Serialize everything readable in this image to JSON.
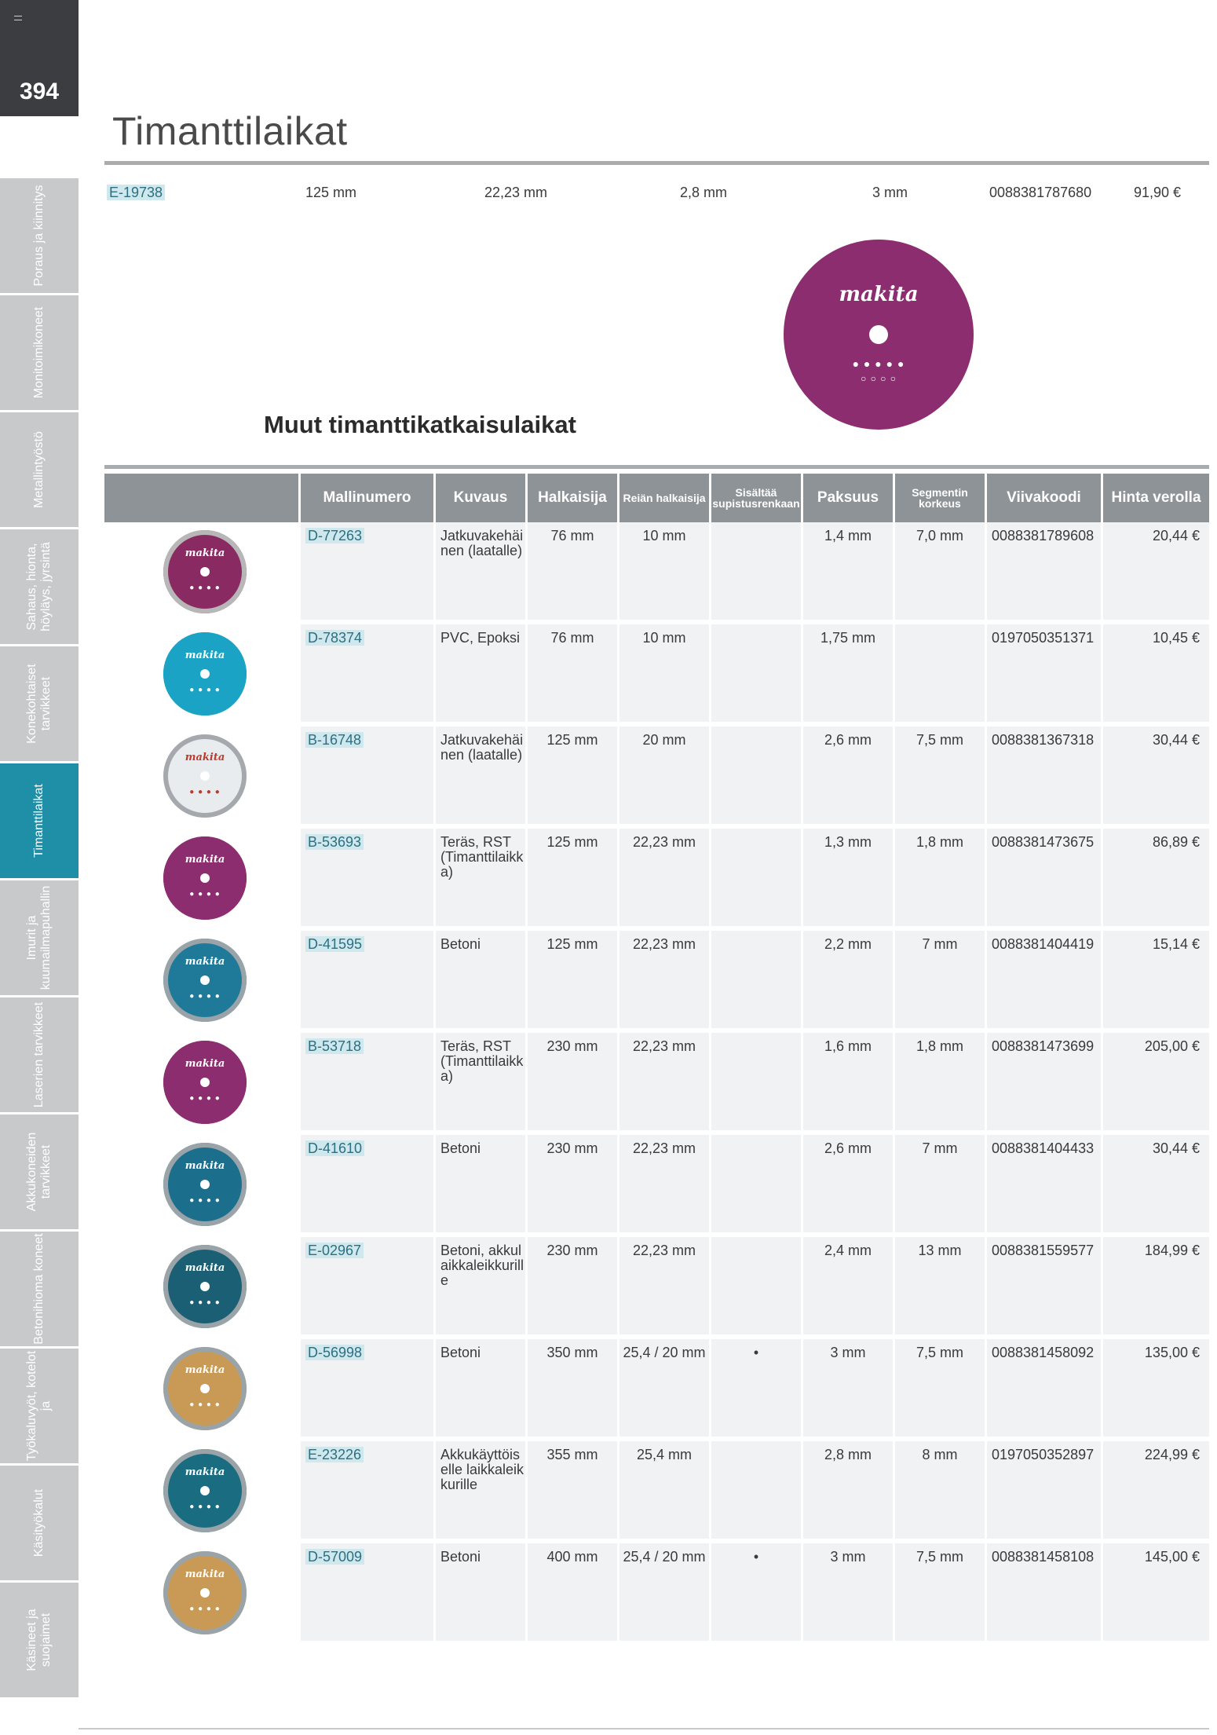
{
  "page": {
    "number": "394"
  },
  "sidebar": {
    "tabs": [
      {
        "label": "Poraus ja kiinnitys",
        "active": false
      },
      {
        "label": "Monitoimikoneet",
        "active": false
      },
      {
        "label": "Metallintyöstö",
        "active": false
      },
      {
        "label": "Sahaus, hionta, höyläys, jyrsintä",
        "active": false
      },
      {
        "label": "Konekohtaiset tarvikkeet",
        "active": false
      },
      {
        "label": "Timanttilaikat",
        "active": true
      },
      {
        "label": "Imurit ja kuumailmapuhallin",
        "active": false
      },
      {
        "label": "Laserien tarvikkeet",
        "active": false
      },
      {
        "label": "Akkukoneiden tarvikkeet",
        "active": false
      },
      {
        "label": "Betonihioma koneet",
        "active": false
      },
      {
        "label": "Työkaluvyöt, kotelot ja",
        "active": false
      },
      {
        "label": "Käsityökalut",
        "active": false
      },
      {
        "label": "Käsineet ja suojaimet",
        "active": false
      }
    ]
  },
  "title": "Timanttilaikat",
  "top_row": {
    "code": "E-19738",
    "diameter": "125 mm",
    "bore": "22,23 mm",
    "thickness": "2,8 mm",
    "segment": "3 mm",
    "barcode": "0088381787680",
    "price": "91,90 €"
  },
  "featured_disc": {
    "brand": "makita",
    "color": "#8b2d6e"
  },
  "section_title": "Muut timanttikatkaisulaikat",
  "table": {
    "headers": {
      "model": "Mallinumero",
      "description": "Kuvaus",
      "diameter": "Halkaisija",
      "bore": "Reiän halkaisija",
      "includes_ring": "Sisältää supistusrenkaan",
      "thickness": "Paksuus",
      "segment_height": "Segmentin korkeus",
      "barcode": "Viivakoodi",
      "price": "Hinta verolla"
    },
    "rows": [
      {
        "model": "D-77263",
        "description": "Jatkuvakehäinen (laatalle)",
        "diameter": "76 mm",
        "bore": "10 mm",
        "ring": "",
        "thickness": "1,4 mm",
        "segment": "7,0 mm",
        "barcode": "0088381789608",
        "price": "20,44 €",
        "disc_color": "#8a2a63",
        "disc_rim": "#b7b7b7"
      },
      {
        "model": "D-78374",
        "description": "PVC, Epoksi",
        "diameter": "76 mm",
        "bore": "10 mm",
        "ring": "",
        "thickness": "1,75 mm",
        "segment": "",
        "barcode": "0197050351371",
        "price": "10,45 €",
        "disc_color": "#1aa3c4",
        "disc_rim": "#1aa3c4"
      },
      {
        "model": "B-16748",
        "description": "Jatkuvakehäinen (laatalle)",
        "diameter": "125 mm",
        "bore": "20 mm",
        "ring": "",
        "thickness": "2,6 mm",
        "segment": "7,5 mm",
        "barcode": "0088381367318",
        "price": "30,44 €",
        "disc_color": "#e9ecef",
        "disc_rim": "#a5a9ad"
      },
      {
        "model": "B-53693",
        "description": "Teräs, RST (Timanttilaikka)",
        "diameter": "125 mm",
        "bore": "22,23 mm",
        "ring": "",
        "thickness": "1,3 mm",
        "segment": "1,8 mm",
        "barcode": "0088381473675",
        "price": "86,89 €",
        "disc_color": "#8b2d6e",
        "disc_rim": "#8b2d6e"
      },
      {
        "model": "D-41595",
        "description": "Betoni",
        "diameter": "125 mm",
        "bore": "22,23 mm",
        "ring": "",
        "thickness": "2,2 mm",
        "segment": "7 mm",
        "barcode": "0088381404419",
        "price": "15,14 €",
        "disc_color": "#1f7a9a",
        "disc_rim": "#9aa3a8"
      },
      {
        "model": "B-53718",
        "description": "Teräs, RST (Timanttilaikka)",
        "diameter": "230 mm",
        "bore": "22,23 mm",
        "ring": "",
        "thickness": "1,6 mm",
        "segment": "1,8 mm",
        "barcode": "0088381473699",
        "price": "205,00 €",
        "disc_color": "#8b2d6e",
        "disc_rim": "#8b2d6e"
      },
      {
        "model": "D-41610",
        "description": "Betoni",
        "diameter": "230 mm",
        "bore": "22,23 mm",
        "ring": "",
        "thickness": "2,6 mm",
        "segment": "7 mm",
        "barcode": "0088381404433",
        "price": "30,44 €",
        "disc_color": "#1b6f8d",
        "disc_rim": "#9aa3a8"
      },
      {
        "model": "E-02967",
        "description": "Betoni, akkulaikkaleikkurille",
        "diameter": "230 mm",
        "bore": "22,23 mm",
        "ring": "",
        "thickness": "2,4 mm",
        "segment": "13 mm",
        "barcode": "0088381559577",
        "price": "184,99 €",
        "disc_color": "#1a5f74",
        "disc_rim": "#9aa3a8"
      },
      {
        "model": "D-56998",
        "description": "Betoni",
        "diameter": "350 mm",
        "bore": "25,4 / 20 mm",
        "ring": "•",
        "thickness": "3 mm",
        "segment": "7,5 mm",
        "barcode": "0088381458092",
        "price": "135,00 €",
        "disc_color": "#c99a55",
        "disc_rim": "#9aa3a8"
      },
      {
        "model": "E-23226",
        "description": "Akkukäyttöiselle laikkaleikkurille",
        "diameter": "355 mm",
        "bore": "25,4 mm",
        "ring": "",
        "thickness": "2,8 mm",
        "segment": "8 mm",
        "barcode": "0197050352897",
        "price": "224,99 €",
        "disc_color": "#1a6d80",
        "disc_rim": "#9aa3a8"
      },
      {
        "model": "D-57009",
        "description": "Betoni",
        "diameter": "400 mm",
        "bore": "25,4 / 20 mm",
        "ring": "•",
        "thickness": "3 mm",
        "segment": "7,5 mm",
        "barcode": "0088381458108",
        "price": "145,00 €",
        "disc_color": "#c99a55",
        "disc_rim": "#9aa3a8"
      }
    ]
  }
}
